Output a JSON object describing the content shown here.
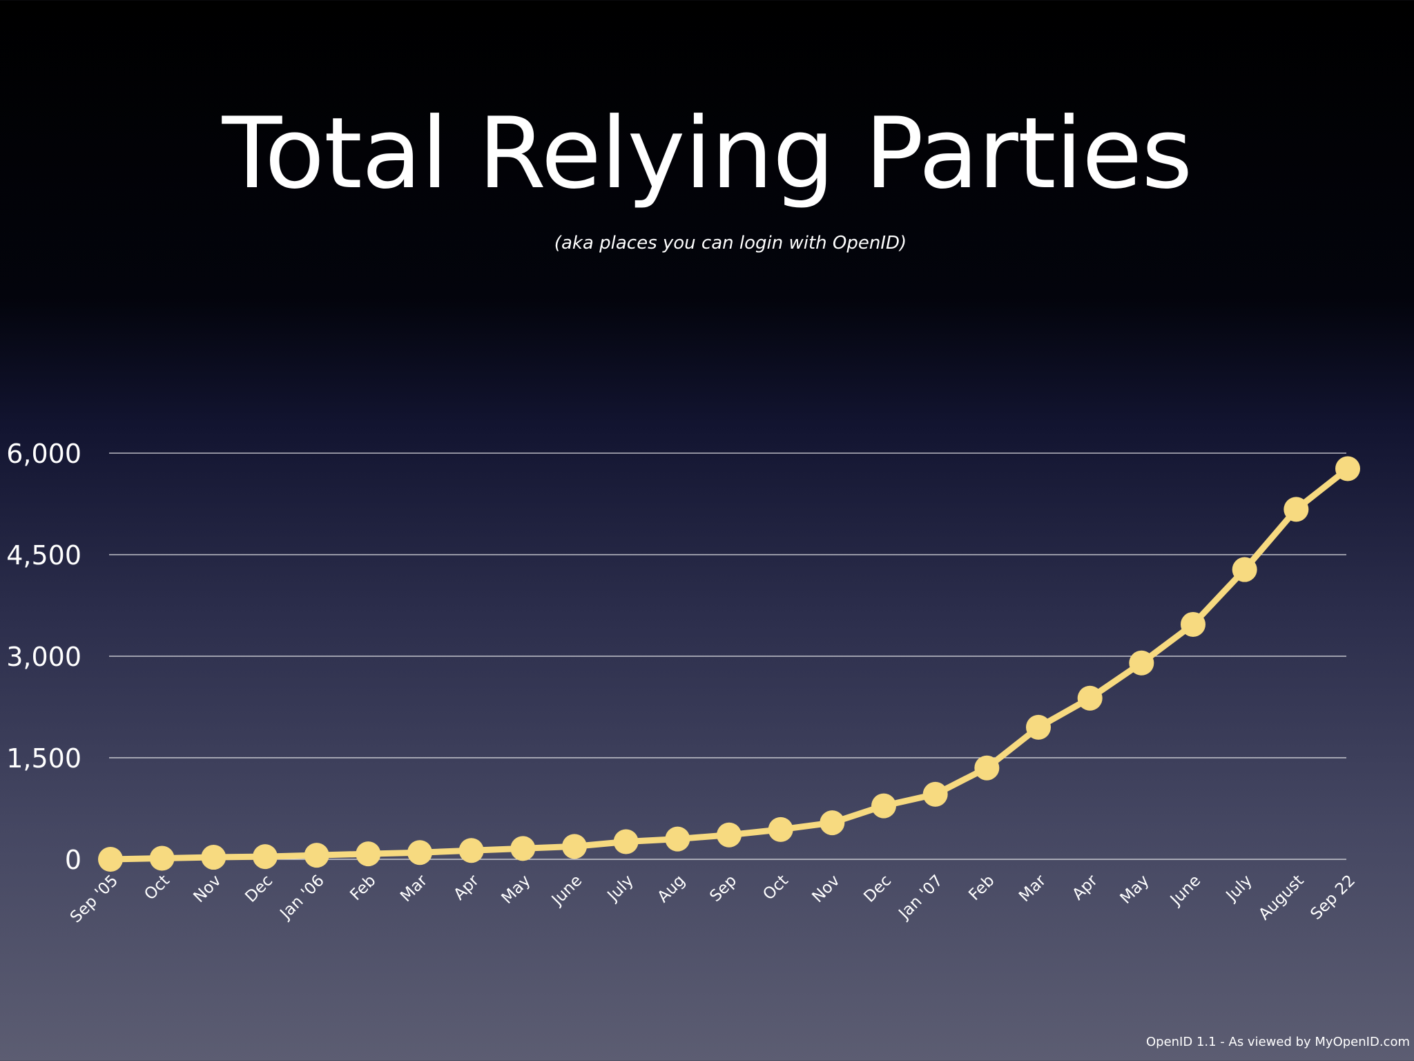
{
  "slide": {
    "title": "Total Relying Parties",
    "subtitle": "(aka places you can login with OpenID)",
    "footer": "OpenID 1.1 - As viewed by MyOpenID.com"
  },
  "colors": {
    "line": "#f7da80",
    "grid": "#ffffff",
    "text": "#ffffff"
  },
  "chart_data": {
    "type": "line",
    "title": "Total Relying Parties",
    "subtitle": "(aka places you can login with OpenID)",
    "xlabel": "",
    "ylabel": "",
    "ylim": [
      0,
      6000
    ],
    "yticks": [
      0,
      1500,
      3000,
      4500,
      6000
    ],
    "ytick_labels": [
      "0",
      "1,500",
      "3,000",
      "4,500",
      "6,000"
    ],
    "grid": true,
    "legend": "none",
    "categories": [
      "Sep '05",
      "Oct",
      "Nov",
      "Dec",
      "Jan '06",
      "Feb",
      "Mar",
      "Apr",
      "May",
      "June",
      "July",
      "Aug",
      "Sep",
      "Oct",
      "Nov",
      "Dec",
      "Jan '07",
      "Feb",
      "Mar",
      "Apr",
      "May",
      "June",
      "July",
      "August",
      "Sep 22"
    ],
    "series": [
      {
        "values": [
          0,
          15,
          30,
          40,
          60,
          80,
          100,
          130,
          160,
          190,
          260,
          300,
          360,
          440,
          540,
          790,
          960,
          1350,
          1950,
          2380,
          2900,
          3470,
          4280,
          5170,
          5770
        ]
      }
    ]
  }
}
